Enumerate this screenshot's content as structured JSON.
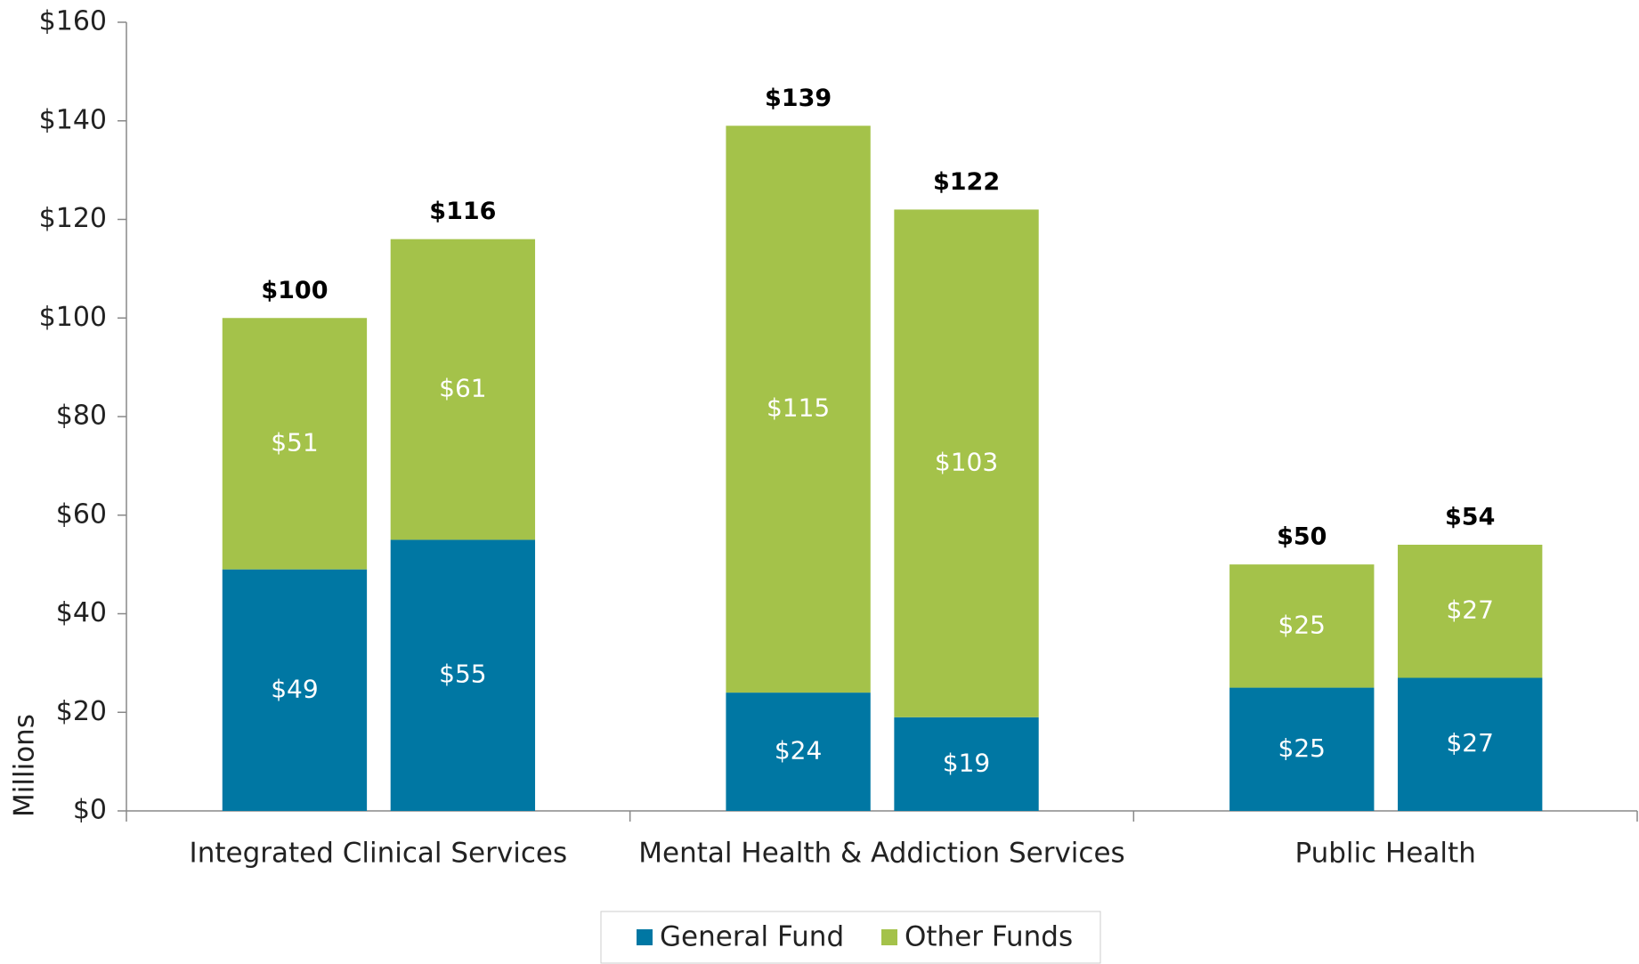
{
  "chart_data": {
    "type": "grouped-stacked-bar",
    "y_label": "Millions",
    "categories": [
      "Integrated Clinical Services",
      "Mental Health & Addiction Services",
      "Public Health"
    ],
    "series": [
      {
        "name": "General Fund",
        "color": "#0077a3",
        "values": [
          [
            49,
            55
          ],
          [
            24,
            19
          ],
          [
            25,
            27
          ]
        ],
        "value_labels": [
          [
            "$49",
            "$55"
          ],
          [
            "$24",
            "$19"
          ],
          [
            "$25",
            "$27"
          ]
        ]
      },
      {
        "name": "Other Funds",
        "color": "#a4c24a",
        "values": [
          [
            51,
            61
          ],
          [
            115,
            103
          ],
          [
            25,
            27
          ]
        ],
        "value_labels": [
          [
            "$51",
            "$61"
          ],
          [
            "$115",
            "$103"
          ],
          [
            "$25",
            "$27"
          ]
        ]
      }
    ],
    "totals": [
      [
        100,
        116
      ],
      [
        139,
        122
      ],
      [
        50,
        54
      ]
    ],
    "total_labels": [
      [
        "$100",
        "$116"
      ],
      [
        "$139",
        "$122"
      ],
      [
        "$50",
        "$54"
      ]
    ],
    "ylim": [
      0,
      160
    ],
    "yticks": [
      {
        "value": 0,
        "label": "$0"
      },
      {
        "value": 20,
        "label": "$20"
      },
      {
        "value": 40,
        "label": "$40"
      },
      {
        "value": 60,
        "label": "$60"
      },
      {
        "value": 80,
        "label": "$80"
      },
      {
        "value": 100,
        "label": "$100"
      },
      {
        "value": 120,
        "label": "$120"
      },
      {
        "value": 140,
        "label": "$140"
      },
      {
        "value": 160,
        "label": "$160"
      }
    ],
    "legend": "bottom"
  }
}
